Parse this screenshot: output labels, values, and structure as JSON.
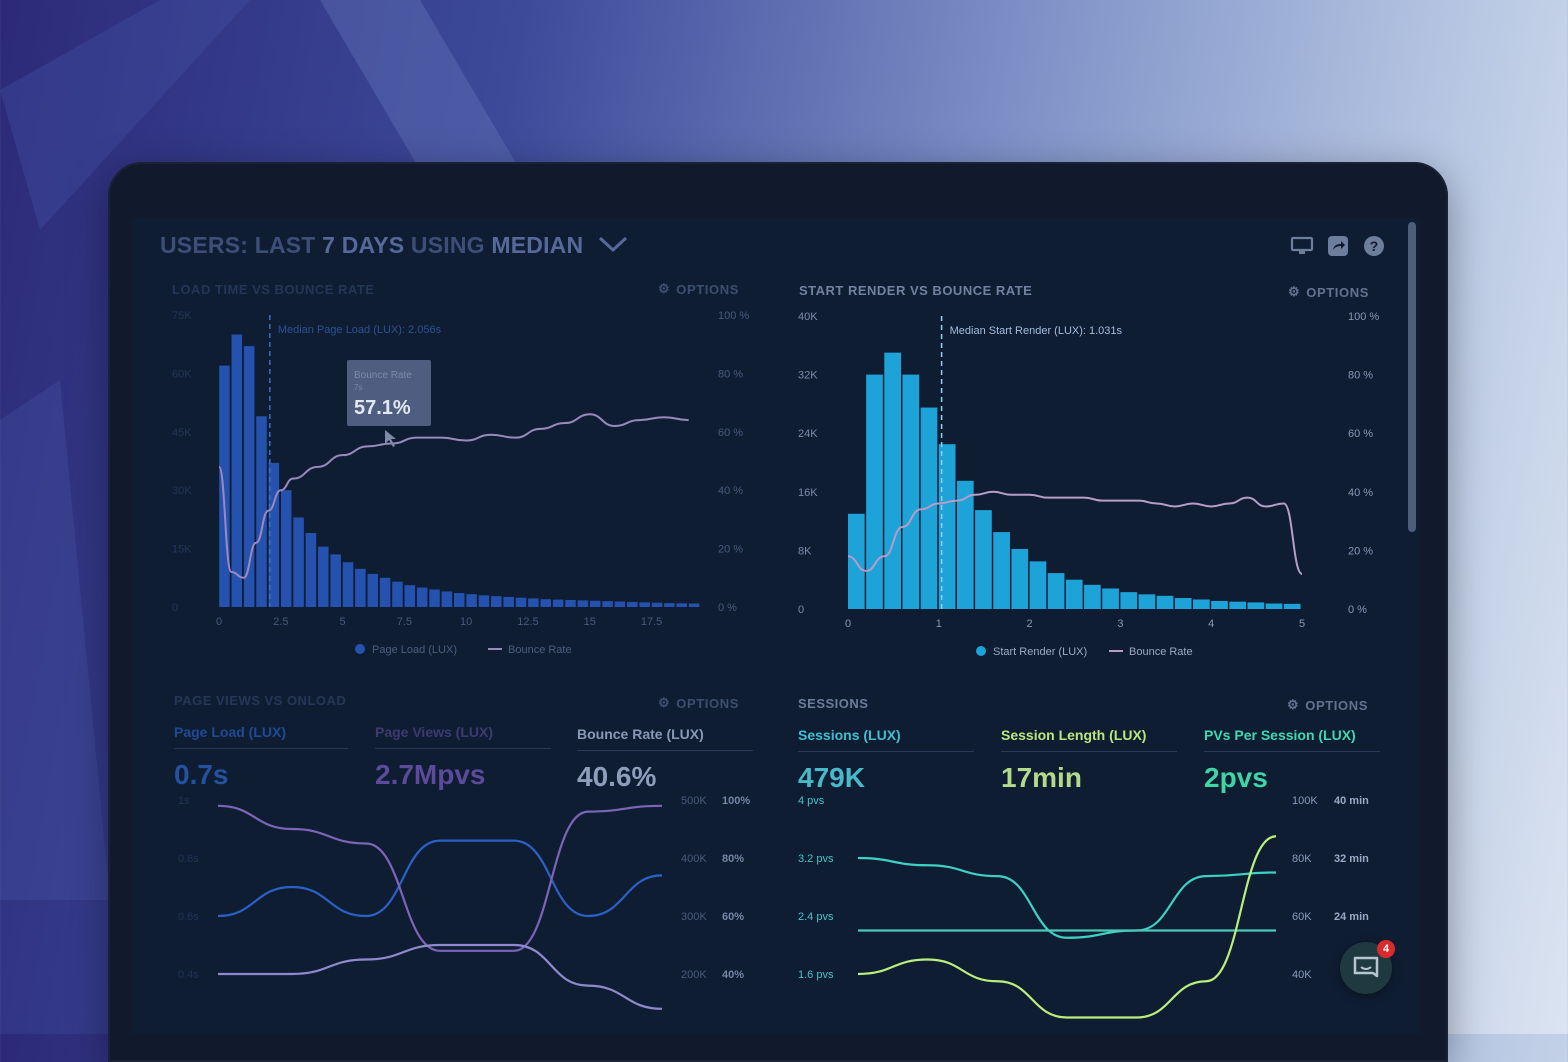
{
  "dashboard": {
    "title_parts": [
      "USERS:",
      "LAST",
      "7 DAYS",
      "USING",
      "MEDIAN"
    ],
    "icons": [
      "monitor-icon",
      "share-icon",
      "help-icon"
    ]
  },
  "panels": {
    "load_time": {
      "title": "LOAD TIME VS BOUNCE RATE",
      "options_label": "OPTIONS",
      "median_label": "Median Page Load (LUX): 2.056s",
      "tooltip": {
        "label": "Bounce Rate",
        "sub": "7s",
        "value": "57.1%"
      },
      "legend": [
        "Page Load (LUX)",
        "Bounce Rate"
      ]
    },
    "start_render": {
      "title": "START RENDER VS BOUNCE RATE",
      "options_label": "OPTIONS",
      "median_label": "Median Start Render (LUX): 1.031s",
      "legend": [
        "Start Render (LUX)",
        "Bounce Rate"
      ]
    },
    "page_views": {
      "title": "PAGE VIEWS VS ONLOAD",
      "options_label": "OPTIONS",
      "metrics": [
        {
          "label": "Page Load (LUX)",
          "value": "0.7s"
        },
        {
          "label": "Page Views (LUX)",
          "value": "2.7Mpvs"
        },
        {
          "label": "Bounce Rate (LUX)",
          "value": "40.6%"
        }
      ]
    },
    "sessions": {
      "title": "SESSIONS",
      "options_label": "OPTIONS",
      "metrics": [
        {
          "label": "Sessions (LUX)",
          "value": "479K"
        },
        {
          "label": "Session Length (LUX)",
          "value": "17min"
        },
        {
          "label": "PVs Per Session (LUX)",
          "value": "2pvs"
        }
      ]
    }
  },
  "chat": {
    "badge_count": "4"
  },
  "colors": {
    "bar_blue": "#2a5cc4",
    "bar_cyan": "#21a3da",
    "bounce_line": "#a98cc8",
    "teal": "#3dd6c2",
    "lime": "#b9f075"
  },
  "chart_data": [
    {
      "type": "bar",
      "title": "LOAD TIME VS BOUNCE RATE",
      "x_ticks": [
        "0",
        "2.5",
        "5",
        "7.5",
        "10",
        "12.5",
        "15",
        "17.5"
      ],
      "y_left_ticks": [
        "0",
        "15K",
        "30K",
        "45K",
        "60K",
        "75K"
      ],
      "y_right_ticks": [
        "0 %",
        "20 %",
        "40 %",
        "60 %",
        "80 %",
        "100 %"
      ],
      "ylim": [
        0,
        75000
      ],
      "y2lim": [
        0,
        100
      ],
      "median_x": 2.056,
      "series": [
        {
          "name": "Page Load (LUX)",
          "x": [
            0.25,
            0.75,
            1.25,
            1.75,
            2.25,
            2.75,
            3.25,
            3.75,
            4.25,
            4.75,
            5.25,
            5.75,
            6.25,
            6.75,
            7.25,
            7.75,
            8.25,
            8.75,
            9.25,
            9.75,
            10.25,
            10.75,
            11.25,
            11.75,
            12.25,
            12.75,
            13.25,
            13.75,
            14.25,
            14.75,
            15.25,
            15.75,
            16.25,
            16.75,
            17.25,
            17.75,
            18.25,
            18.75,
            19.25
          ],
          "values": [
            62000,
            70000,
            67000,
            49000,
            37000,
            30000,
            23000,
            19000,
            15500,
            13500,
            11500,
            9800,
            8500,
            7500,
            6500,
            5600,
            5000,
            4500,
            4000,
            3600,
            3300,
            3000,
            2800,
            2600,
            2400,
            2200,
            2000,
            1900,
            1800,
            1700,
            1600,
            1500,
            1400,
            1300,
            1200,
            1100,
            1000,
            950,
            900
          ]
        },
        {
          "name": "Bounce Rate",
          "x": [
            0,
            0.5,
            1,
            1.5,
            2,
            2.5,
            3,
            4,
            5,
            6,
            7,
            8,
            9,
            10,
            11,
            12,
            13,
            14,
            15,
            16,
            17,
            18,
            19
          ],
          "values": [
            48,
            12,
            10,
            22,
            33,
            40,
            44,
            48,
            52,
            55,
            56,
            58,
            58,
            57,
            59,
            58,
            61,
            63,
            66,
            62,
            64,
            65,
            64
          ]
        }
      ]
    },
    {
      "type": "bar",
      "title": "START RENDER VS BOUNCE RATE",
      "x_ticks": [
        "0",
        "1",
        "2",
        "3",
        "4",
        "5"
      ],
      "y_left_ticks": [
        "0",
        "8K",
        "16K",
        "24K",
        "32K",
        "40K"
      ],
      "y_right_ticks": [
        "0 %",
        "20 %",
        "40 %",
        "60 %",
        "80 %",
        "100 %"
      ],
      "ylim": [
        0,
        40000
      ],
      "y2lim": [
        0,
        100
      ],
      "median_x": 1.031,
      "series": [
        {
          "name": "Start Render (LUX)",
          "x": [
            0.1,
            0.3,
            0.5,
            0.7,
            0.9,
            1.1,
            1.3,
            1.5,
            1.7,
            1.9,
            2.1,
            2.3,
            2.5,
            2.7,
            2.9,
            3.1,
            3.3,
            3.5,
            3.7,
            3.9,
            4.1,
            4.3,
            4.5,
            4.7,
            4.9
          ],
          "values": [
            13000,
            32000,
            35000,
            32000,
            27500,
            22500,
            17500,
            13500,
            10500,
            8200,
            6500,
            4900,
            4000,
            3300,
            2800,
            2300,
            2000,
            1800,
            1500,
            1300,
            1100,
            1000,
            900,
            750,
            700
          ]
        },
        {
          "name": "Bounce Rate",
          "x": [
            0,
            0.2,
            0.4,
            0.6,
            0.8,
            1.0,
            1.2,
            1.4,
            1.6,
            1.8,
            2.0,
            2.2,
            2.4,
            2.6,
            2.8,
            3.0,
            3.2,
            3.4,
            3.6,
            3.8,
            4.0,
            4.2,
            4.4,
            4.6,
            4.8,
            5.0
          ],
          "values": [
            18,
            13,
            18,
            28,
            34,
            36,
            37,
            39,
            40,
            39,
            39,
            38,
            38,
            38,
            37,
            37,
            37,
            36,
            35,
            36,
            35,
            36,
            38,
            35,
            36,
            12
          ]
        }
      ]
    },
    {
      "type": "line",
      "title": "PAGE VIEWS VS ONLOAD",
      "y_left_ticks": [
        "1s",
        "0.8s",
        "0.6s",
        "0.4s"
      ],
      "y_mid_ticks": [
        "500K",
        "400K",
        "300K",
        "200K"
      ],
      "y_right_ticks": [
        "100%",
        "80%",
        "60%",
        "40%"
      ],
      "series": [
        {
          "name": "Page Load (LUX)",
          "x": [
            0,
            1,
            2,
            3,
            4,
            5,
            6
          ],
          "values": [
            0.6,
            0.7,
            0.6,
            0.86,
            0.86,
            0.6,
            0.74
          ]
        },
        {
          "name": "Page Views (LUX)",
          "x": [
            0,
            1,
            2,
            3,
            4,
            5,
            6
          ],
          "values": [
            0.98,
            0.9,
            0.85,
            0.48,
            0.48,
            0.96,
            0.98
          ]
        },
        {
          "name": "Bounce Rate (LUX)",
          "x": [
            0,
            1,
            2,
            3,
            4,
            5,
            6
          ],
          "values": [
            0.4,
            0.4,
            0.45,
            0.5,
            0.5,
            0.36,
            0.28
          ]
        }
      ]
    },
    {
      "type": "line",
      "title": "SESSIONS",
      "y_left_ticks": [
        "4 pvs",
        "3.2 pvs",
        "2.4 pvs",
        "1.6 pvs"
      ],
      "y_mid_ticks": [
        "100K",
        "80K",
        "60K",
        "40K"
      ],
      "y_right_ticks": [
        "40 min",
        "32 min",
        "24 min"
      ],
      "series": [
        {
          "name": "Sessions (LUX)",
          "x": [
            0,
            1,
            2,
            3,
            4,
            5,
            6
          ],
          "values": [
            3.2,
            3.1,
            2.95,
            2.1,
            2.2,
            2.95,
            3.0
          ]
        },
        {
          "name": "Session Length (LUX)",
          "x": [
            0,
            1,
            2,
            3,
            4,
            5,
            6
          ],
          "values": [
            2.2,
            2.2,
            2.2,
            2.2,
            2.2,
            2.2,
            2.2
          ]
        },
        {
          "name": "PVs Per Session (LUX)",
          "x": [
            0,
            1,
            2,
            3,
            4,
            5,
            6
          ],
          "values": [
            1.6,
            1.8,
            1.5,
            1.0,
            1.0,
            1.5,
            3.5
          ]
        }
      ]
    }
  ]
}
